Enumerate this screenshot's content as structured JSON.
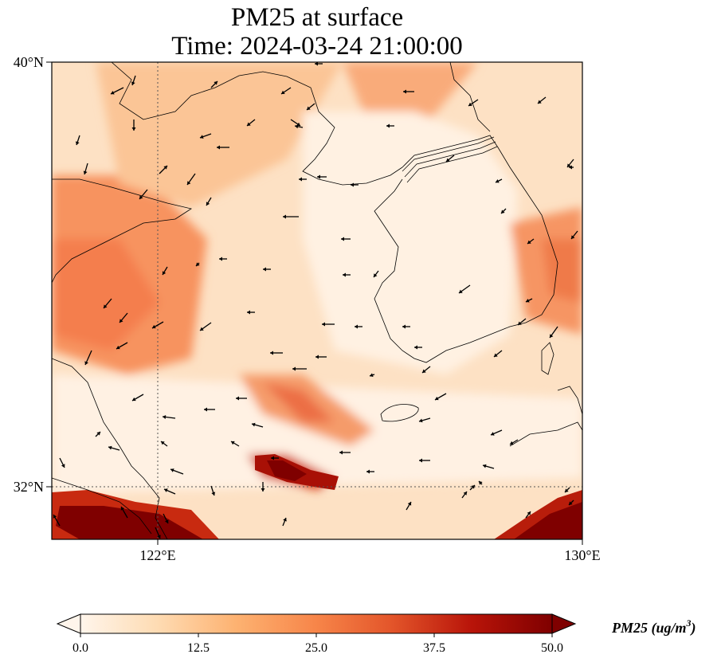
{
  "title_line1": "PM25 at surface",
  "title_line2": "Time: 2024-03-24 21:00:00",
  "lat_labels": [
    "40°N",
    "32°N"
  ],
  "lon_labels": [
    "122°E",
    "130°E"
  ],
  "colorbar": {
    "label": "PM25 (ug/m",
    "label_sup": "3",
    "label_end": ")",
    "ticks": [
      "0.0",
      "12.5",
      "25.0",
      "37.5",
      "50.0"
    ],
    "min": 0,
    "max": 50,
    "colors": [
      "#fff5eb",
      "#fdd8b0",
      "#fdab67",
      "#f4743b",
      "#d94515",
      "#a50f05",
      "#7f0000"
    ]
  },
  "map": {
    "lat_range": [
      31,
      40
    ],
    "lon_range": [
      120,
      130
    ],
    "gridlines": {
      "lat": [
        32
      ],
      "lon": [
        122
      ]
    }
  }
}
